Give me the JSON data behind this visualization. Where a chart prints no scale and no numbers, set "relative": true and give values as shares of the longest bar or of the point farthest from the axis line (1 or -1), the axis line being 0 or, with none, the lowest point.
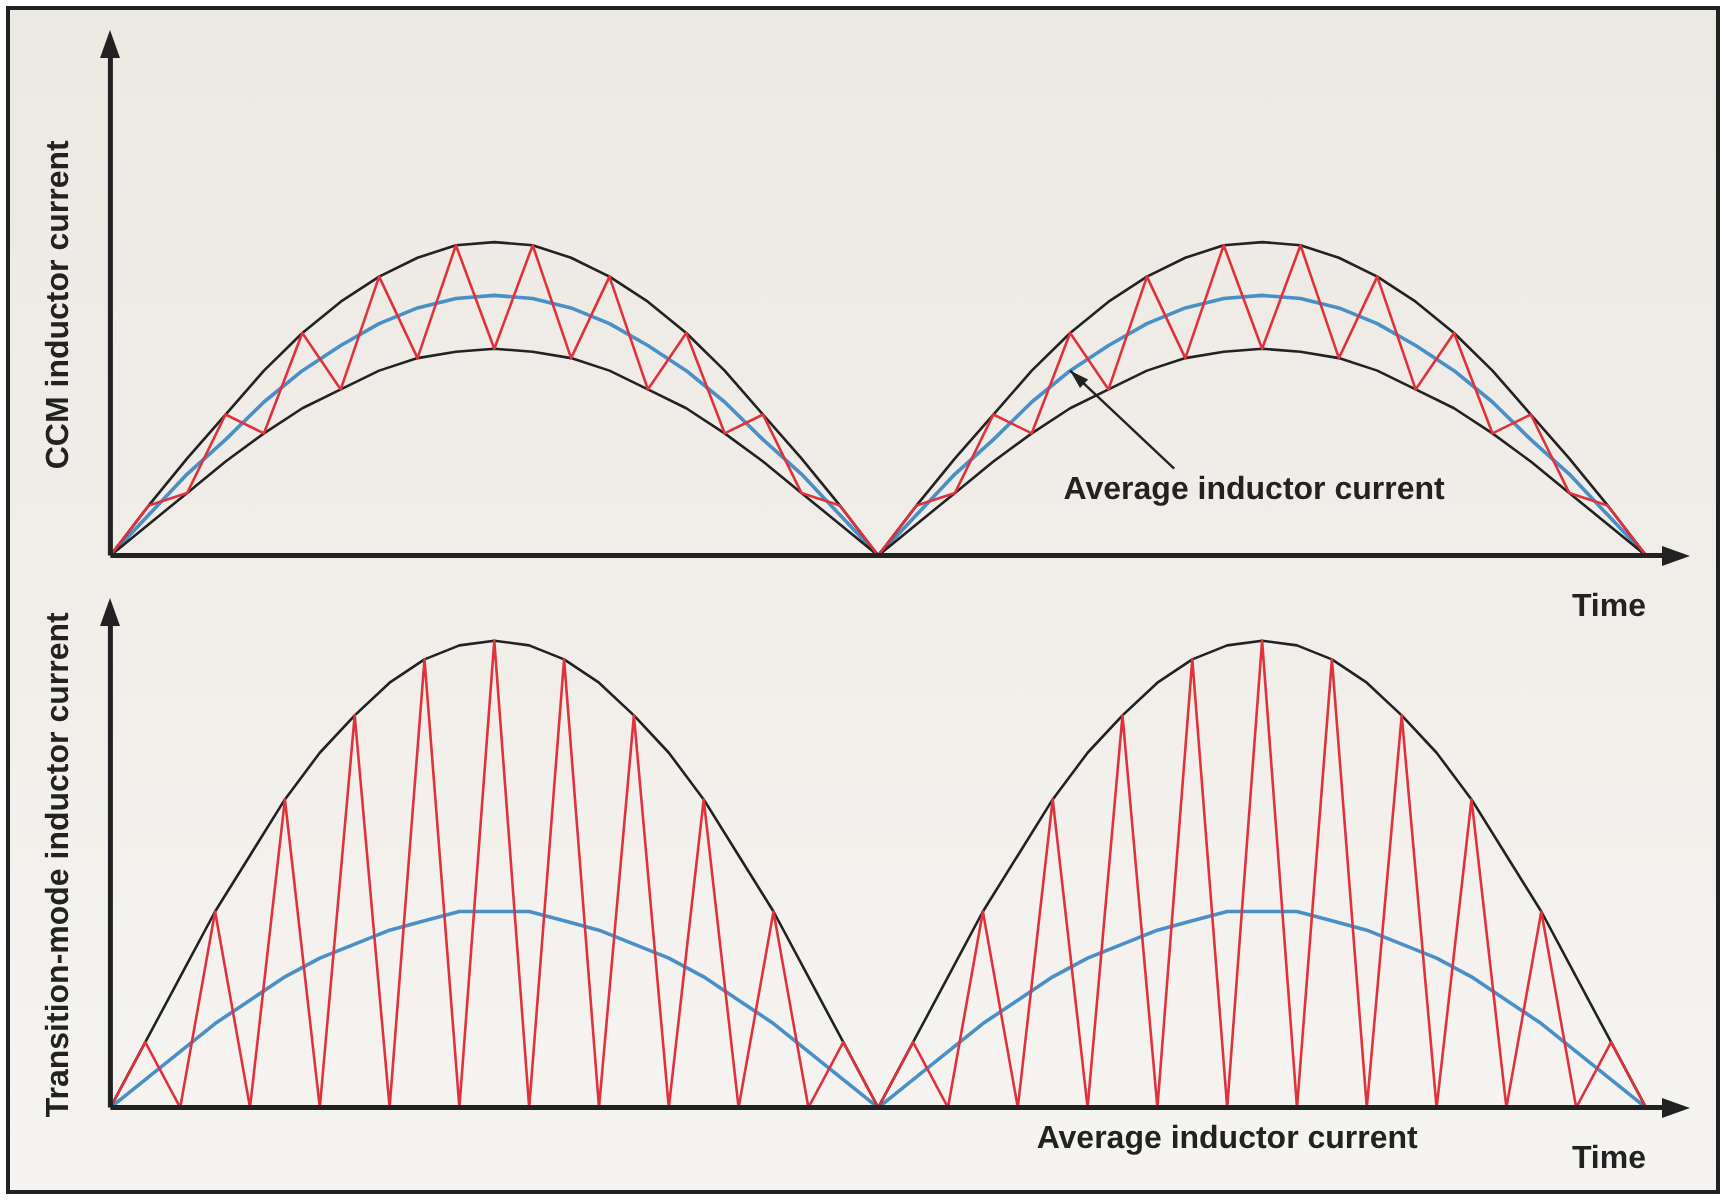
{
  "chart_data": [
    {
      "type": "line",
      "relative": true,
      "ylabel": "CCM inductor current",
      "xlabel": "Time",
      "legend": false,
      "grid": false,
      "tick_labels": false,
      "marker": "none",
      "annotations": [
        "Average inductor current"
      ],
      "categories": [
        null,
        null,
        null,
        null,
        null,
        null,
        null,
        null,
        null,
        null,
        null,
        null,
        null,
        null,
        null,
        null,
        null,
        null,
        null,
        null,
        null,
        null,
        null,
        null,
        null,
        null,
        null,
        null,
        null,
        null,
        null,
        null,
        null,
        null,
        null,
        null,
        null,
        null,
        null,
        null,
        null
      ],
      "series": [
        {
          "color": "#e0323c",
          "values": [
            0,
            0.16,
            0.2,
            0.45,
            0.39,
            0.71,
            0.53,
            0.89,
            0.63,
            0.99,
            0.66,
            0.99,
            0.63,
            0.89,
            0.53,
            0.71,
            0.39,
            0.45,
            0.2,
            0.16,
            0,
            0.16,
            0.2,
            0.45,
            0.39,
            0.71,
            0.53,
            0.89,
            0.63,
            0.99,
            0.66,
            0.99,
            0.63,
            0.89,
            0.53,
            0.71,
            0.39,
            0.45,
            0.2,
            0.16,
            0
          ]
        },
        {
          "color": "#222222",
          "values": [
            0,
            0.16,
            0.31,
            0.45,
            0.59,
            0.71,
            0.81,
            0.89,
            0.95,
            0.99,
            1,
            0.99,
            0.95,
            0.89,
            0.81,
            0.71,
            0.59,
            0.45,
            0.31,
            0.16,
            0,
            0.16,
            0.31,
            0.45,
            0.59,
            0.71,
            0.81,
            0.89,
            0.95,
            0.99,
            1,
            0.99,
            0.95,
            0.89,
            0.81,
            0.71,
            0.59,
            0.45,
            0.31,
            0.16,
            0
          ]
        },
        {
          "color": "#222222",
          "values": [
            0,
            0.1,
            0.2,
            0.3,
            0.39,
            0.47,
            0.53,
            0.59,
            0.63,
            0.65,
            0.66,
            0.65,
            0.63,
            0.59,
            0.53,
            0.47,
            0.39,
            0.3,
            0.2,
            0.1,
            0,
            0.1,
            0.2,
            0.3,
            0.39,
            0.47,
            0.53,
            0.59,
            0.63,
            0.65,
            0.66,
            0.65,
            0.63,
            0.59,
            0.53,
            0.47,
            0.39,
            0.3,
            0.2,
            0.1,
            0
          ]
        },
        {
          "color": "#4a90c8",
          "values": [
            0,
            0.13,
            0.26,
            0.37,
            0.49,
            0.59,
            0.67,
            0.74,
            0.79,
            0.82,
            0.83,
            0.82,
            0.79,
            0.74,
            0.67,
            0.59,
            0.49,
            0.37,
            0.26,
            0.13,
            0,
            0.13,
            0.26,
            0.37,
            0.49,
            0.59,
            0.67,
            0.74,
            0.79,
            0.82,
            0.83,
            0.82,
            0.79,
            0.74,
            0.67,
            0.59,
            0.49,
            0.37,
            0.26,
            0.13,
            0
          ]
        }
      ]
    },
    {
      "type": "line",
      "relative": true,
      "ylabel": "Transition-mode inductor current",
      "xlabel": "Time",
      "legend": false,
      "grid": false,
      "tick_labels": false,
      "marker": "none",
      "annotations": [
        "Average inductor current"
      ],
      "categories": [
        null,
        null,
        null,
        null,
        null,
        null,
        null,
        null,
        null,
        null,
        null,
        null,
        null,
        null,
        null,
        null,
        null,
        null,
        null,
        null,
        null,
        null,
        null,
        null,
        null,
        null,
        null,
        null,
        null,
        null,
        null,
        null,
        null,
        null,
        null,
        null,
        null,
        null,
        null,
        null,
        null,
        null,
        null,
        null,
        null
      ],
      "series": [
        {
          "color": "#e0323c",
          "values": [
            0,
            0.14,
            0,
            0.42,
            0,
            0.66,
            0,
            0.84,
            0,
            0.96,
            0,
            1,
            0,
            0.96,
            0,
            0.84,
            0,
            0.66,
            0,
            0.42,
            0,
            0.14,
            0,
            0.14,
            0,
            0.42,
            0,
            0.66,
            0,
            0.84,
            0,
            0.96,
            0,
            1,
            0,
            0.96,
            0,
            0.84,
            0,
            0.66,
            0,
            0.42,
            0,
            0.14,
            0
          ]
        },
        {
          "color": "#222222",
          "values": [
            0,
            0.14,
            0.28,
            0.42,
            0.54,
            0.66,
            0.76,
            0.84,
            0.91,
            0.96,
            0.99,
            1,
            0.99,
            0.96,
            0.91,
            0.84,
            0.76,
            0.66,
            0.54,
            0.42,
            0.28,
            0.14,
            0,
            0.14,
            0.28,
            0.42,
            0.54,
            0.66,
            0.76,
            0.84,
            0.91,
            0.96,
            0.99,
            1,
            0.99,
            0.96,
            0.91,
            0.84,
            0.76,
            0.66,
            0.54,
            0.42,
            0.28,
            0.14,
            0
          ]
        },
        {
          "color": "#4a90c8",
          "values": [
            0,
            0.06,
            0.12,
            0.18,
            0.23,
            0.28,
            0.32,
            0.35,
            0.38,
            0.4,
            0.42,
            0.42,
            0.42,
            0.4,
            0.38,
            0.35,
            0.32,
            0.28,
            0.23,
            0.18,
            0.12,
            0.06,
            0,
            0.06,
            0.12,
            0.18,
            0.23,
            0.28,
            0.32,
            0.35,
            0.38,
            0.4,
            0.42,
            0.42,
            0.42,
            0.4,
            0.38,
            0.35,
            0.32,
            0.28,
            0.23,
            0.18,
            0.12,
            0.06,
            0
          ]
        }
      ]
    }
  ]
}
